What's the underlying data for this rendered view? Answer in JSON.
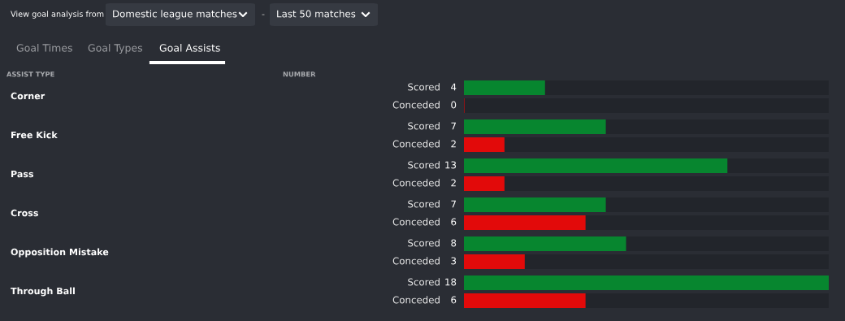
{
  "chart_data": {
    "type": "bar",
    "orientation": "horizontal",
    "categories": [
      "Corner",
      "Free Kick",
      "Pass",
      "Cross",
      "Opposition Mistake",
      "Through Ball"
    ],
    "series": [
      {
        "name": "Scored",
        "color": "#07862f",
        "values": [
          4,
          7,
          13,
          7,
          8,
          18
        ]
      },
      {
        "name": "Conceded",
        "color": "#e20a0a",
        "values": [
          0,
          2,
          2,
          6,
          3,
          6
        ]
      }
    ],
    "xlim": [
      0,
      18
    ],
    "data_labels": true,
    "annotations": [
      "View goal analysis from",
      "Domestic league matches",
      "-",
      "Last 50 matches",
      "Goal Times",
      "Goal Types",
      "Goal Assists",
      "ASSIST TYPE",
      "NUMBER"
    ]
  }
}
